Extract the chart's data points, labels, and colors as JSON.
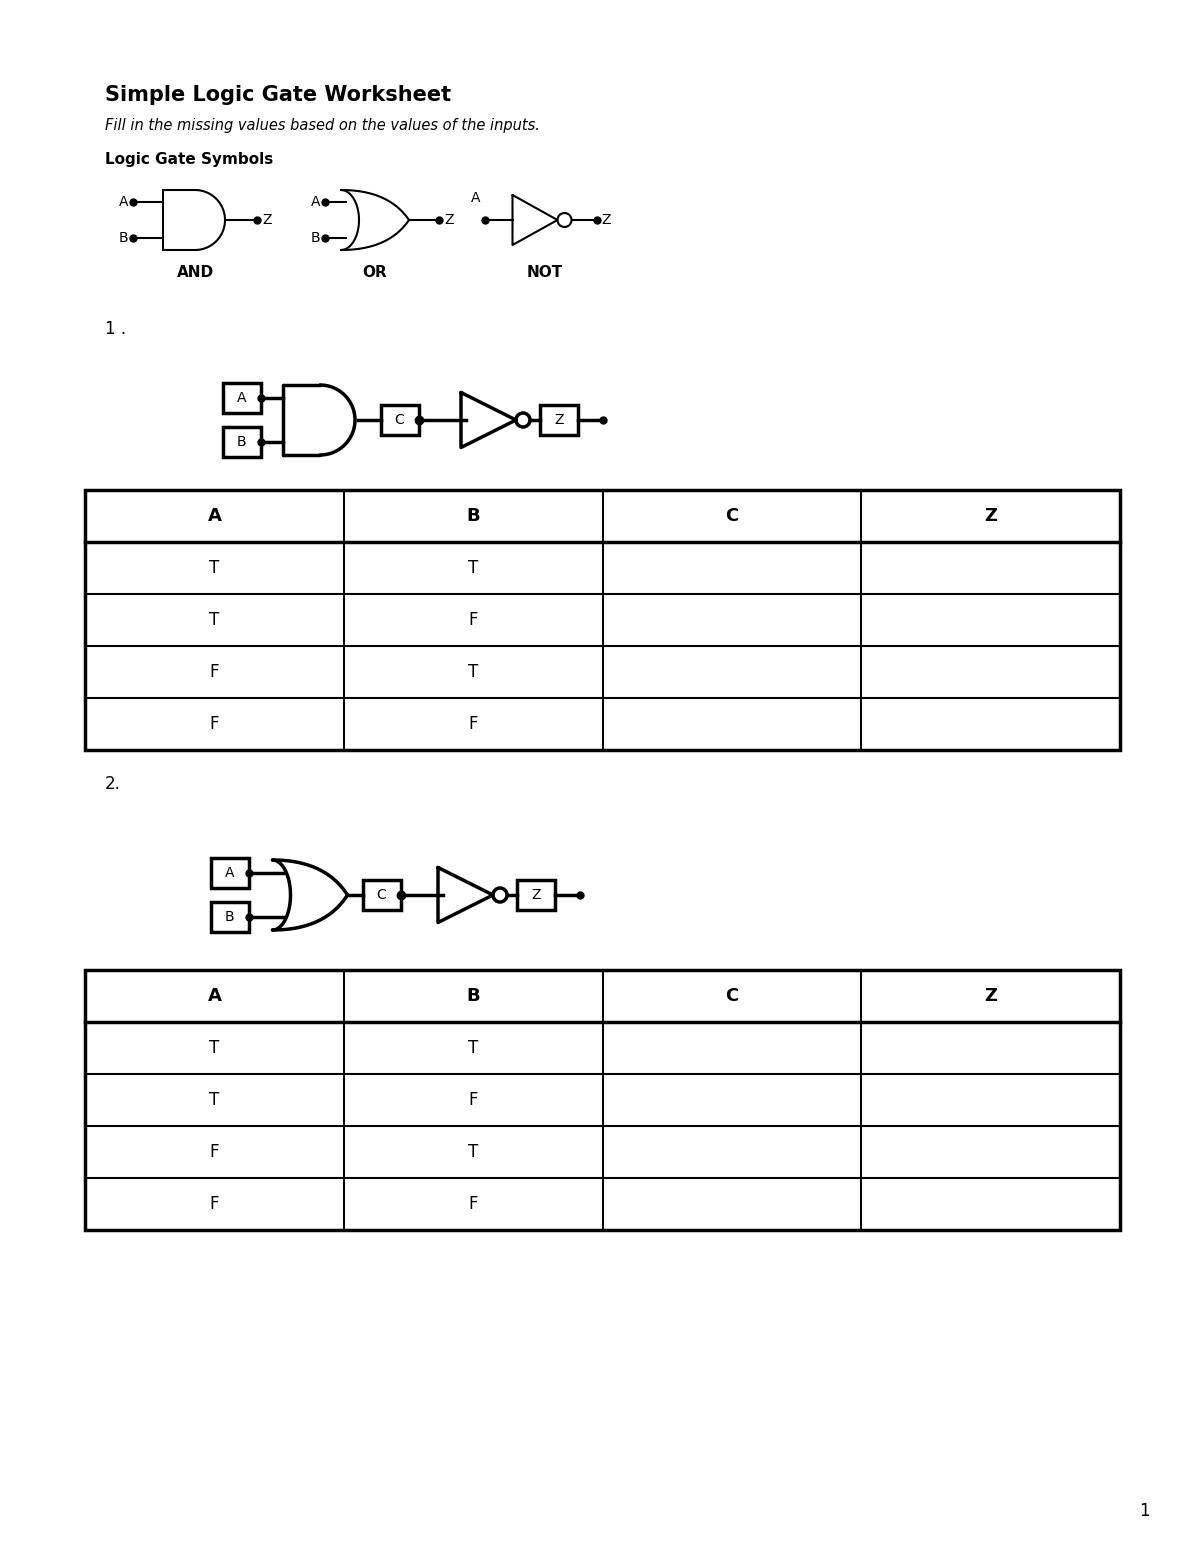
{
  "title": "Simple Logic Gate Worksheet",
  "subtitle": "Fill in the missing values based on the values of the inputs.",
  "symbols_label": "Logic Gate Symbols",
  "table1_header": [
    "A",
    "B",
    "C",
    "Z"
  ],
  "table1_rows": [
    [
      "T",
      "T",
      "",
      ""
    ],
    [
      "T",
      "F",
      "",
      ""
    ],
    [
      "F",
      "T",
      "",
      ""
    ],
    [
      "F",
      "F",
      "",
      ""
    ]
  ],
  "table2_header": [
    "A",
    "B",
    "C",
    "Z"
  ],
  "table2_rows": [
    [
      "T",
      "T",
      "",
      ""
    ],
    [
      "T",
      "F",
      "",
      ""
    ],
    [
      "F",
      "T",
      "",
      ""
    ],
    [
      "F",
      "F",
      "",
      ""
    ]
  ],
  "question1": "1 .",
  "question2": "2.",
  "page_number": "1",
  "bg_color": "#ffffff"
}
